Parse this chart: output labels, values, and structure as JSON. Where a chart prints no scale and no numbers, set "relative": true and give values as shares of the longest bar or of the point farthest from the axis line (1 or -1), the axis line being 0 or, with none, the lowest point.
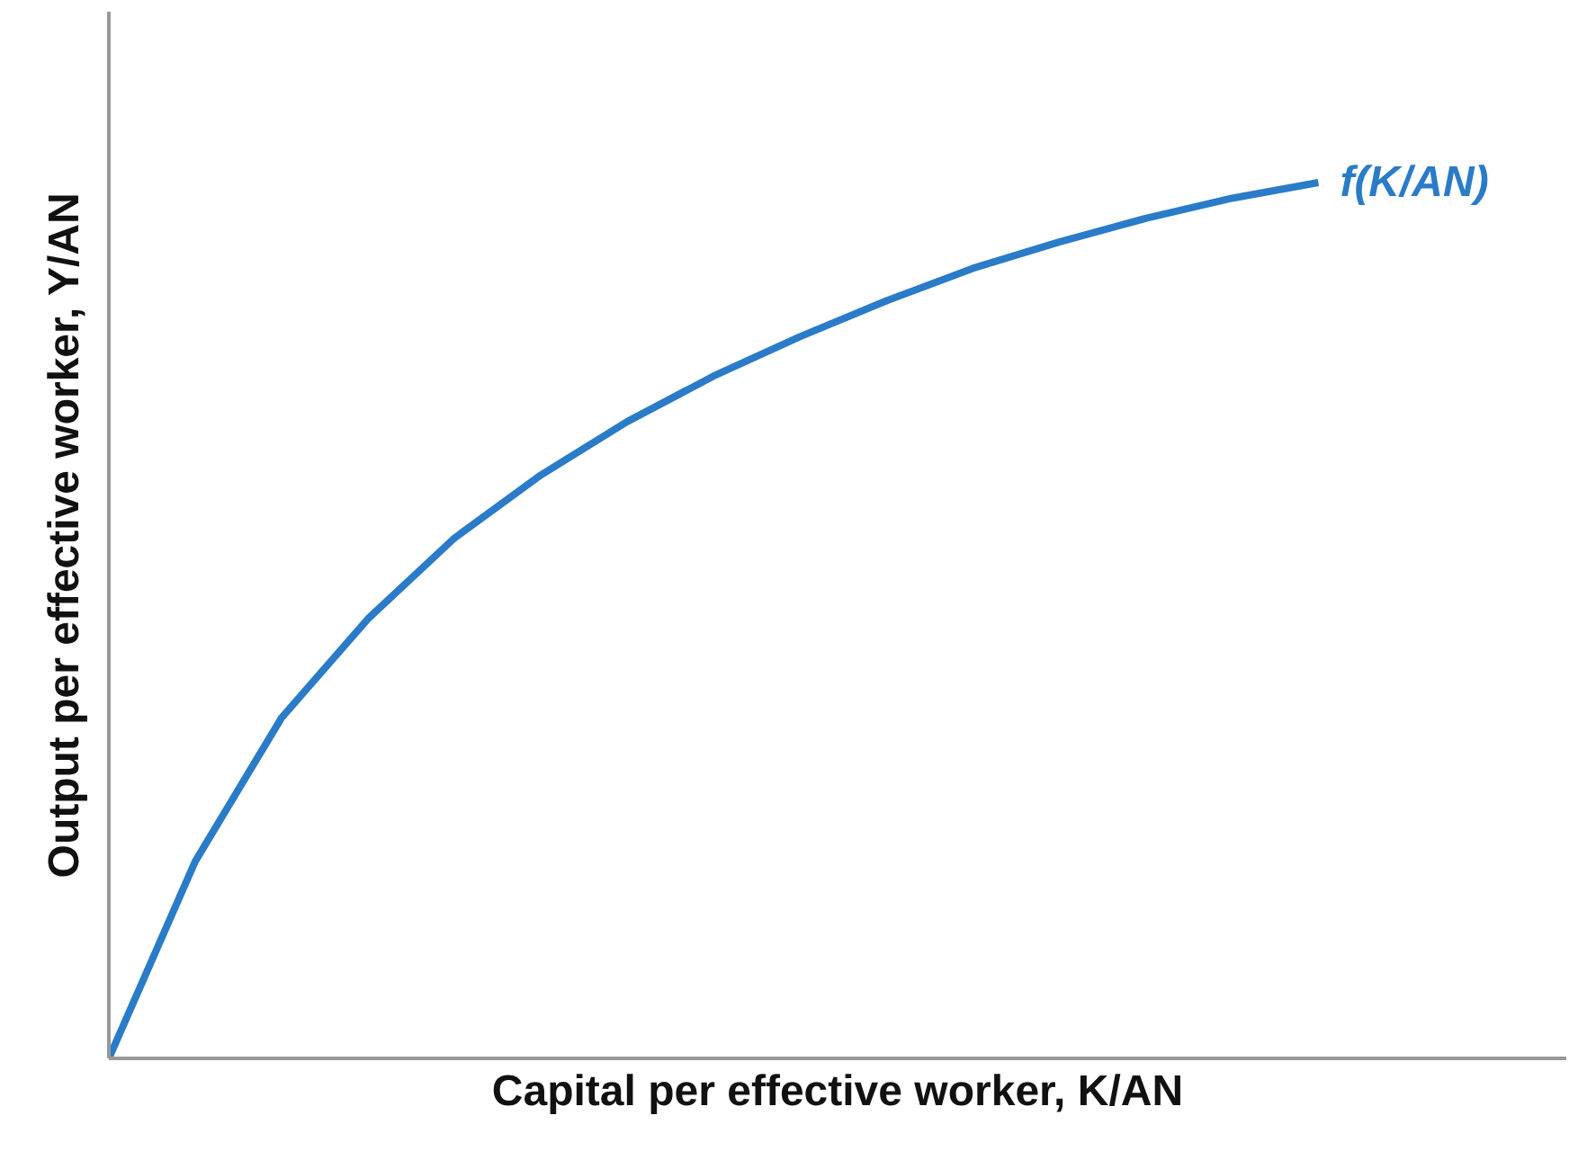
{
  "chart_data": {
    "type": "line",
    "xlabel": "Capital per effective worker, K/AN",
    "ylabel": "Output per effective worker, Y/AN",
    "relative": true,
    "categories": [
      null,
      null,
      null,
      null,
      null,
      null,
      null,
      null,
      null,
      null,
      null,
      null,
      null,
      null,
      null
    ],
    "series": [
      {
        "name": "f(K/AN)",
        "color": "#2a7bc8",
        "values": [
          0,
          0.225,
          0.389,
          0.502,
          0.594,
          0.666,
          0.727,
          0.779,
          0.824,
          0.865,
          0.902,
          0.932,
          0.959,
          0.982,
          1
        ]
      }
    ],
    "grid": false,
    "legend": false,
    "marker": "none",
    "line_style": "solid",
    "tick_labels": false
  }
}
